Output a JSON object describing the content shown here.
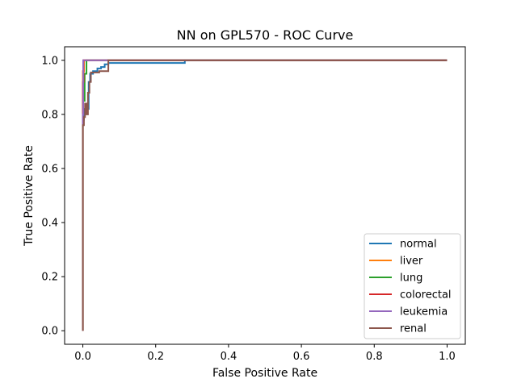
{
  "chart_data": {
    "type": "line",
    "title": "NN on GPL570 - ROC Curve",
    "xlabel": "False Positive Rate",
    "ylabel": "True Positive Rate",
    "xlim": [
      -0.05,
      1.05
    ],
    "ylim": [
      -0.05,
      1.05
    ],
    "xticks": [
      0.0,
      0.2,
      0.4,
      0.6,
      0.8,
      1.0
    ],
    "yticks": [
      0.0,
      0.2,
      0.4,
      0.6,
      0.8,
      1.0
    ],
    "xtick_labels": [
      "0.0",
      "0.2",
      "0.4",
      "0.6",
      "0.8",
      "1.0"
    ],
    "ytick_labels": [
      "0.0",
      "0.2",
      "0.4",
      "0.6",
      "0.8",
      "1.0"
    ],
    "grid": false,
    "legend_position": "bottom-right",
    "series": [
      {
        "name": "normal",
        "color": "#1f77b4",
        "x": [
          0.0,
          0.0,
          0.003,
          0.003,
          0.008,
          0.008,
          0.012,
          0.012,
          0.016,
          0.016,
          0.02,
          0.02,
          0.028,
          0.028,
          0.04,
          0.04,
          0.05,
          0.05,
          0.06,
          0.06,
          0.07,
          0.07,
          0.28,
          0.28,
          1.0
        ],
        "y": [
          0.0,
          0.78,
          0.78,
          0.82,
          0.82,
          0.83,
          0.83,
          0.82,
          0.82,
          0.92,
          0.92,
          0.95,
          0.95,
          0.96,
          0.96,
          0.97,
          0.97,
          0.975,
          0.975,
          0.985,
          0.985,
          0.99,
          0.99,
          1.0,
          1.0
        ]
      },
      {
        "name": "liver",
        "color": "#ff7f0e",
        "x": [
          0.0,
          0.0,
          0.003,
          0.003,
          1.0
        ],
        "y": [
          0.0,
          0.96,
          0.96,
          1.0,
          1.0
        ]
      },
      {
        "name": "lung",
        "color": "#2ca02c",
        "x": [
          0.0,
          0.0,
          0.005,
          0.005,
          0.01,
          0.01,
          1.0
        ],
        "y": [
          0.0,
          0.85,
          0.85,
          0.95,
          0.95,
          1.0,
          1.0
        ]
      },
      {
        "name": "colorectal",
        "color": "#d62728",
        "x": [
          0.0,
          0.0,
          0.002,
          0.002,
          1.0
        ],
        "y": [
          0.0,
          0.92,
          0.92,
          1.0,
          1.0
        ]
      },
      {
        "name": "leukemia",
        "color": "#9467bd",
        "x": [
          0.0,
          0.0,
          0.001,
          0.001,
          0.07,
          0.07,
          1.0
        ],
        "y": [
          0.0,
          0.8,
          0.8,
          1.0,
          1.0,
          1.0,
          1.0
        ]
      },
      {
        "name": "renal",
        "color": "#8c564b",
        "x": [
          0.0,
          0.0,
          0.003,
          0.003,
          0.006,
          0.006,
          0.01,
          0.01,
          0.014,
          0.014,
          0.018,
          0.018,
          0.022,
          0.022,
          0.045,
          0.045,
          0.07,
          0.07,
          1.0
        ],
        "y": [
          0.0,
          0.76,
          0.76,
          0.79,
          0.79,
          0.84,
          0.84,
          0.8,
          0.8,
          0.88,
          0.88,
          0.92,
          0.92,
          0.955,
          0.955,
          0.96,
          0.96,
          1.0,
          1.0
        ]
      }
    ]
  }
}
